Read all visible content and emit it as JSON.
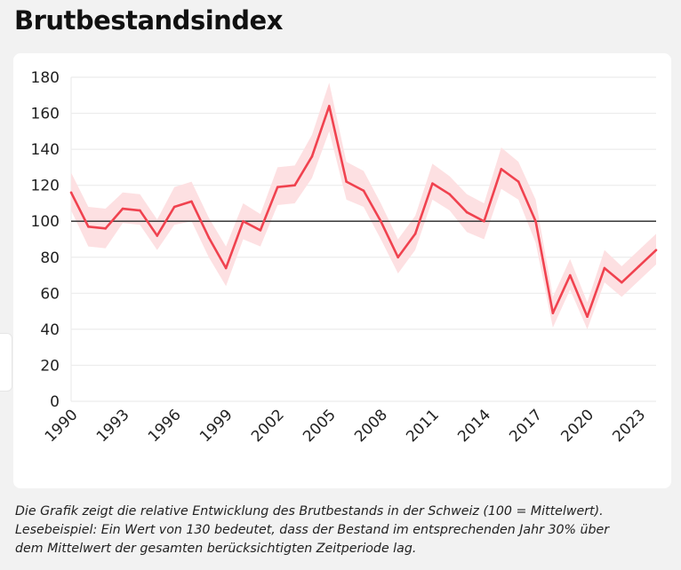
{
  "title": "Brutbestandsindex",
  "caption": [
    "Die Grafik zeigt die relative Entwicklung des Brutbestands in der Schweiz (100 = Mittelwert).",
    "Lesebeispiel: Ein Wert von 130 bedeutet, dass der Bestand im entsprechenden Jahr 30% über",
    "dem Mittelwert der gesamten berücksichtigten Zeitperiode lag."
  ],
  "chart_data": {
    "type": "line",
    "title": "Brutbestandsindex",
    "xlabel": "",
    "ylabel": "",
    "ylim": [
      0,
      180
    ],
    "xlim": [
      1990,
      2024
    ],
    "yticks": [
      "0",
      "20",
      "40",
      "60",
      "80",
      "100",
      "120",
      "140",
      "160",
      "180"
    ],
    "xticks": [
      "1990",
      "1993",
      "1996",
      "1999",
      "2002",
      "2005",
      "2008",
      "2011",
      "2014",
      "2017",
      "2020",
      "2023"
    ],
    "reference_line": 100,
    "grid": true,
    "line_color": "#f0424f",
    "band_color": "#fde0e2",
    "x": [
      1990,
      1991,
      1992,
      1993,
      1994,
      1995,
      1996,
      1997,
      1998,
      1999,
      2000,
      2001,
      2002,
      2003,
      2004,
      2005,
      2006,
      2007,
      2008,
      2009,
      2010,
      2011,
      2012,
      2013,
      2014,
      2015,
      2016,
      2017,
      2018,
      2019,
      2020,
      2021,
      2022,
      2023,
      2024
    ],
    "series": [
      {
        "name": "Brutbestandsindex",
        "values": [
          116,
          97,
          96,
          107,
          106,
          92,
          108,
          111,
          91,
          74,
          100,
          95,
          119,
          120,
          136,
          164,
          122,
          117,
          100,
          80,
          93,
          121,
          115,
          105,
          100,
          129,
          122,
          100,
          49,
          70,
          47,
          74,
          66,
          75,
          84
        ],
        "lower": [
          106,
          86,
          85,
          99,
          98,
          84,
          98,
          100,
          80,
          64,
          90,
          86,
          109,
          110,
          124,
          150,
          112,
          108,
          90,
          71,
          84,
          112,
          106,
          94,
          90,
          118,
          112,
          88,
          41,
          62,
          40,
          66,
          58,
          67,
          76
        ],
        "upper": [
          127,
          108,
          107,
          116,
          115,
          101,
          119,
          122,
          102,
          86,
          110,
          104,
          130,
          131,
          148,
          177,
          133,
          128,
          110,
          90,
          103,
          132,
          125,
          115,
          110,
          141,
          133,
          112,
          58,
          79,
          55,
          84,
          75,
          84,
          93
        ]
      }
    ]
  }
}
